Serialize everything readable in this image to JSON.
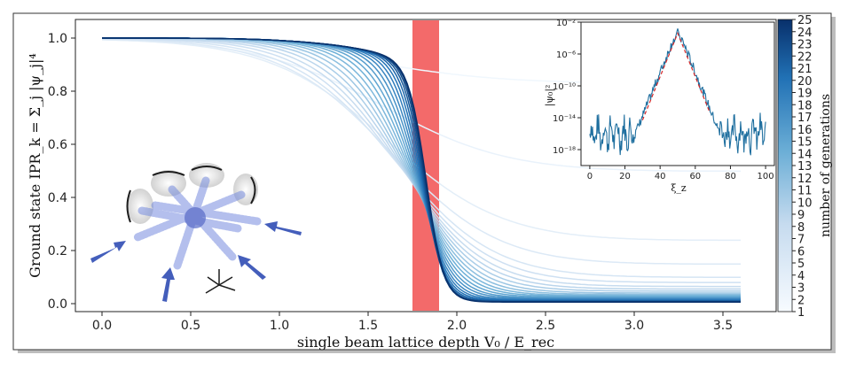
{
  "chart_data": [
    {
      "type": "line",
      "xlabel": "single beam lattice depth V₀ / E_rec",
      "ylabel": "Ground state IPR_k = Σ_j |ψ_j|⁴",
      "xlim": [
        -0.15,
        3.8
      ],
      "ylim": [
        -0.03,
        1.07
      ],
      "x_ticks": [
        "0.0",
        "0.5",
        "1.0",
        "1.5",
        "2.0",
        "2.5",
        "3.0",
        "3.5"
      ],
      "y_ticks": [
        "0.0",
        "0.2",
        "0.4",
        "0.6",
        "0.8",
        "1.0"
      ],
      "x_range": [
        0.0,
        3.6
      ],
      "series_by_generation": {
        "generations": [
          2,
          3,
          4,
          5,
          6,
          7,
          8,
          9,
          10,
          11,
          12,
          13,
          14,
          15,
          16,
          17,
          18,
          19,
          20,
          21,
          22,
          23,
          24,
          25
        ],
        "ipr_at_x_3_6": [
          0.83,
          0.5,
          0.24,
          0.15,
          0.1,
          0.08,
          0.065,
          0.055,
          0.047,
          0.04,
          0.035,
          0.031,
          0.028,
          0.025,
          0.022,
          0.02,
          0.017,
          0.015,
          0.013,
          0.011,
          0.009,
          0.008,
          0.007,
          0.006
        ],
        "ipr_at_x_0": 1.0
      },
      "highlight_band": {
        "x_from": 1.75,
        "x_to": 1.9,
        "color": "#f36a6a"
      },
      "grid": false
    },
    {
      "type": "line",
      "panel": "inset",
      "xlabel": "ξ_z",
      "ylabel": "|ψ₀|²",
      "y_scale": "log",
      "xlim": [
        -5,
        105
      ],
      "x_ticks": [
        "0",
        "20",
        "40",
        "60",
        "80",
        "100"
      ],
      "y_ticks": [
        "10⁻²",
        "10⁻⁶",
        "10⁻¹⁰",
        "10⁻¹⁴",
        "10⁻¹⁸"
      ],
      "peak": {
        "x": 50,
        "log10_y": -2.8
      },
      "envelope_fit": {
        "style": "dashed",
        "color": "#d62728",
        "x_from": 30,
        "x_to": 68
      },
      "series_color": "#1f6f9f"
    },
    {
      "type": "colorbar",
      "label": "number of generations",
      "ticks": [
        "1",
        "2",
        "3",
        "4",
        "5",
        "6",
        "7",
        "8",
        "9",
        "10",
        "11",
        "12",
        "13",
        "14",
        "15",
        "16",
        "17",
        "18",
        "19",
        "20",
        "21",
        "22",
        "23",
        "24",
        "25"
      ],
      "cmap": [
        "#f7fbff",
        "#c6dbef",
        "#6baed6",
        "#2171b5",
        "#08306b"
      ]
    }
  ],
  "icons": {
    "arrow_color": "#3a56b8",
    "beam_color": "#5a73d6",
    "axes_triad": "triad-icon"
  }
}
